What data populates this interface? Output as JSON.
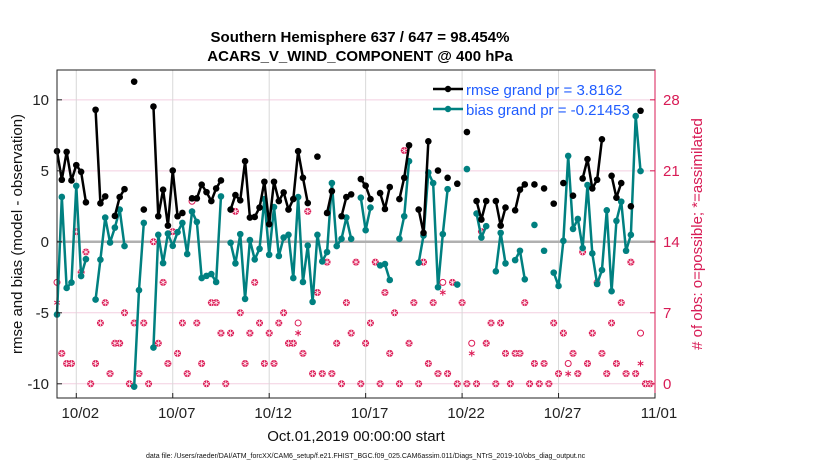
{
  "chart_data": {
    "type": "line",
    "title": [
      "Southern Hemisphere 637 / 647 = 98.454%",
      "ACARS_V_WIND_COMPONENT @ 400 hPa"
    ],
    "xlabel": "Oct.01,2019 00:00:00 start",
    "ylabel": "rmse and bias (model - observation)",
    "ylabel_right": "# of obs: o=possible; *=assimilated",
    "footer": "data file: /Users/raeder/DAI/ATM_forcXX/CAM6_setup/f.e21.FHIST_BGC.f09_025.CAM6assim.011/Diags_NTrS_2019-10/obs_diag_output.nc",
    "x_unit": "days since Oct.01,2019 00:00, 6-hourly (index/4)",
    "xlim": [
      0,
      31
    ],
    "xticks": [
      1,
      6,
      11,
      16,
      21,
      26,
      31
    ],
    "xtick_labels": [
      "10/02",
      "10/07",
      "10/12",
      "10/17",
      "10/22",
      "10/27",
      "11/01"
    ],
    "ylim": [
      -11,
      12.1
    ],
    "yticks": [
      -10,
      -5,
      0,
      5,
      10
    ],
    "ytick_labels": [
      "-10",
      "-5",
      "0",
      "5",
      "10"
    ],
    "ylim_right": [
      -1.4,
      30.94
    ],
    "yticks_right": [
      0,
      7,
      14,
      21,
      28
    ],
    "ytick_labels_right": [
      "0",
      "7",
      "14",
      "21",
      "28"
    ],
    "grid": true,
    "legend_position": "top-right",
    "colors": {
      "rmse": "#000000",
      "bias": "#008080",
      "obs": "#dc1a55",
      "legend_text": "#1f5cff",
      "zero_line": "#b0b0b0"
    },
    "series": [
      {
        "name": "rmse grand pr = 3.8162",
        "values": [
          6.38,
          4.37,
          6.33,
          4.32,
          5.4,
          4.93,
          2.78,
          null,
          9.3,
          2.71,
          3.2,
          null,
          1.82,
          3.15,
          3.71,
          null,
          11.28,
          null,
          2.27,
          null,
          9.53,
          1.8,
          3.67,
          1.14,
          5.02,
          1.8,
          2.03,
          null,
          3.06,
          3.06,
          4.02,
          3.5,
          2.87,
          3.76,
          4.32,
          null,
          2.27,
          3.29,
          2.92,
          5.68,
          1.71,
          1.75,
          2.41,
          4.23,
          1.24,
          4.23,
          2.87,
          3.48,
          2.27,
          3.01,
          6.38,
          4.51,
          2.73,
          null,
          6.0,
          null,
          2.03,
          3.57,
          null,
          1.8,
          3.15,
          3.34,
          null,
          4.42,
          3.95,
          3.01,
          null,
          3.43,
          2.31,
          3.86,
          null,
          3.01,
          4.51,
          6.8,
          null,
          2.27,
          0.63,
          7.08,
          null,
          5.02,
          null,
          4.51,
          null,
          4.09,
          null,
          7.73,
          null,
          2.87,
          1.57,
          2.87,
          null,
          2.87,
          1.14,
          2.41,
          null,
          2.22,
          3.67,
          4.04,
          null,
          4.04,
          null,
          3.76,
          null,
          2.69,
          null,
          4.14,
          null,
          3.25,
          null,
          4.46,
          5.82,
          3.76,
          4.37,
          7.22,
          null,
          4.65,
          3.11,
          4.14,
          null,
          2.5,
          null,
          9.23,
          null,
          null
        ]
      },
      {
        "name": "bias grand pr = -0.21453",
        "values": [
          -5.12,
          3.16,
          -3.25,
          -2.87,
          3.94,
          -2.41,
          -1.22,
          null,
          -4.07,
          -1.26,
          1.71,
          -0.05,
          1.0,
          2.27,
          -0.3,
          null,
          -10.2,
          -3.41,
          1.33,
          null,
          -7.45,
          0.49,
          -1.5,
          0.58,
          -0.28,
          0.68,
          1.33,
          -0.86,
          2.13,
          1.4,
          -2.55,
          -2.4,
          -2.27,
          -2.83,
          3.2,
          null,
          -0.07,
          -1.52,
          0.54,
          -4.02,
          0.12,
          -1.24,
          -0.49,
          3.01,
          -0.91,
          2.45,
          -1.0,
          0.3,
          0.49,
          -2.55,
          3.15,
          -2.83,
          -0.26,
          -4.23,
          0.49,
          -1.38,
          -0.72,
          4.14,
          -0.3,
          0.21,
          1.71,
          0.21,
          null,
          3.11,
          0.82,
          2.41,
          null,
          -1.66,
          -1.57,
          -2.69,
          null,
          0.21,
          1.8,
          5.68,
          null,
          -1.47,
          0.44,
          4.88,
          4.14,
          -3.2,
          0.54,
          3.71,
          null,
          -3.01,
          null,
          5.12,
          null,
          1.99,
          0.3,
          1.1,
          null,
          -2.08,
          0.63,
          -1.52,
          null,
          -1.29,
          -0.63,
          -2.64,
          null,
          1.19,
          null,
          -0.63,
          null,
          -2.17,
          -3.11,
          0.07,
          6.05,
          0.91,
          1.61,
          -0.44,
          4.0,
          -0.82,
          -2.97,
          -1.99,
          2.22,
          -3.48,
          1.47,
          2.83,
          -0.63,
          0.49,
          8.86,
          4.98,
          null,
          null
        ]
      },
      {
        "name": "possible",
        "axis": "right",
        "values": [
          10,
          3,
          2,
          2,
          15,
          11,
          13,
          0,
          2,
          6,
          8,
          1,
          4,
          4,
          7,
          0,
          6,
          1,
          6,
          0,
          14,
          4,
          10,
          2,
          15,
          3,
          6,
          1,
          18,
          6,
          2,
          0,
          8,
          8,
          5,
          0,
          5,
          17,
          7,
          2,
          5,
          10,
          6,
          2,
          5,
          2,
          6,
          7,
          4,
          4,
          6,
          3,
          17,
          1,
          9,
          1,
          12,
          1,
          4,
          0,
          8,
          5,
          12,
          0,
          4,
          6,
          12,
          0,
          9,
          3,
          7,
          0,
          23,
          4,
          8,
          0,
          12,
          2,
          8,
          1,
          10,
          1,
          10,
          0,
          8,
          0,
          4,
          0,
          15,
          4,
          6,
          0,
          6,
          3,
          0,
          3,
          3,
          8,
          0,
          2,
          0,
          2,
          0,
          6,
          1,
          5,
          2,
          3,
          1,
          13,
          2,
          5,
          10,
          3,
          1,
          6,
          2,
          8,
          1,
          12,
          1,
          5,
          0,
          0
        ]
      },
      {
        "name": "assimilated",
        "axis": "right",
        "values": [
          8,
          3,
          2,
          2,
          15,
          11,
          13,
          0,
          2,
          6,
          8,
          1,
          4,
          4,
          7,
          0,
          6,
          1,
          6,
          0,
          14,
          4,
          10,
          2,
          15,
          3,
          6,
          1,
          17,
          6,
          2,
          0,
          8,
          8,
          5,
          0,
          5,
          17,
          7,
          2,
          5,
          10,
          6,
          2,
          5,
          2,
          6,
          7,
          4,
          4,
          5,
          3,
          17,
          1,
          9,
          1,
          12,
          1,
          4,
          0,
          8,
          5,
          12,
          0,
          4,
          6,
          12,
          0,
          9,
          3,
          7,
          0,
          23,
          4,
          8,
          0,
          12,
          2,
          8,
          1,
          9,
          1,
          10,
          0,
          8,
          0,
          3,
          0,
          15,
          4,
          6,
          0,
          6,
          3,
          0,
          3,
          3,
          8,
          0,
          2,
          0,
          2,
          0,
          6,
          1,
          5,
          1,
          3,
          1,
          13,
          2,
          5,
          10,
          3,
          1,
          6,
          2,
          8,
          1,
          12,
          1,
          2,
          0,
          0
        ]
      }
    ]
  }
}
